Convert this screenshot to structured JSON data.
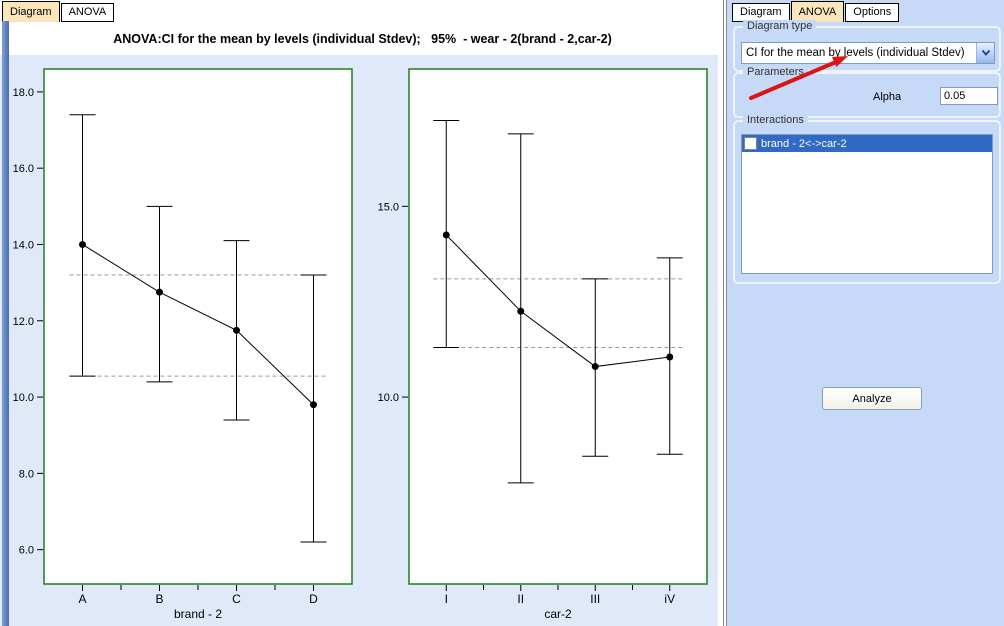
{
  "left_pane": {
    "tabs": [
      {
        "label": "Diagram",
        "active": true
      },
      {
        "label": "ANOVA",
        "active": false
      }
    ],
    "title": "ANOVA:CI for the mean by levels (individual Stdev);   95%  - wear - 2(brand - 2,car-2)"
  },
  "right_panel": {
    "tabs": [
      {
        "label": "Diagram",
        "active": false
      },
      {
        "label": "ANOVA",
        "active": true
      },
      {
        "label": "Options",
        "active": false
      }
    ],
    "diagram_type": {
      "legend": "Diagram type",
      "selected": "CI for the mean by levels (individual Stdev)"
    },
    "parameters": {
      "legend": "Parameters",
      "alpha_label": "Alpha",
      "alpha_value": "0.05"
    },
    "interactions": {
      "legend": "Interactions",
      "items": [
        {
          "label": "brand - 2<->car-2",
          "checked": false,
          "selected": true
        }
      ]
    },
    "analyze_label": "Analyze"
  },
  "colors": {
    "selection": "#316ac5",
    "plot_border": "#1e7e1e",
    "annotation_arrow": "#dd1414",
    "tab_active_bg": "#fbe5bb",
    "panel_bg": "#c6d9f7",
    "chart_bg": "#dfe9fa",
    "accent_strip": "#4a6cad",
    "dashed_line": "#999999"
  },
  "chart_data": [
    {
      "type": "line",
      "title": "CI for the mean by levels - brand",
      "categories": [
        "A",
        "B",
        "C",
        "D"
      ],
      "means": [
        14.0,
        12.75,
        11.75,
        9.8
      ],
      "ci_upper": [
        17.4,
        15.0,
        14.1,
        13.2
      ],
      "ci_lower": [
        10.55,
        10.4,
        9.4,
        6.2
      ],
      "dashed_lines": [
        13.2,
        10.55
      ],
      "yticks": [
        6.0,
        8.0,
        10.0,
        12.0,
        14.0,
        16.0,
        18.0
      ],
      "ylim": [
        5.1,
        18.6
      ],
      "xlabel": "brand - 2",
      "ylabel": "",
      "grid": false,
      "legend_position": "none"
    },
    {
      "type": "line",
      "title": "CI for the mean by levels - car",
      "categories": [
        "I",
        "II",
        "III",
        "iV"
      ],
      "means": [
        14.25,
        12.25,
        10.8,
        11.05
      ],
      "ci_upper": [
        17.25,
        16.9,
        13.1,
        13.65
      ],
      "ci_lower": [
        11.3,
        7.75,
        8.45,
        8.5
      ],
      "dashed_lines": [
        13.1,
        11.3
      ],
      "yticks": [
        10.0,
        15.0
      ],
      "ylim": [
        5.1,
        18.6
      ],
      "xlabel": "car-2",
      "ylabel": "",
      "grid": false,
      "legend_position": "none"
    }
  ]
}
